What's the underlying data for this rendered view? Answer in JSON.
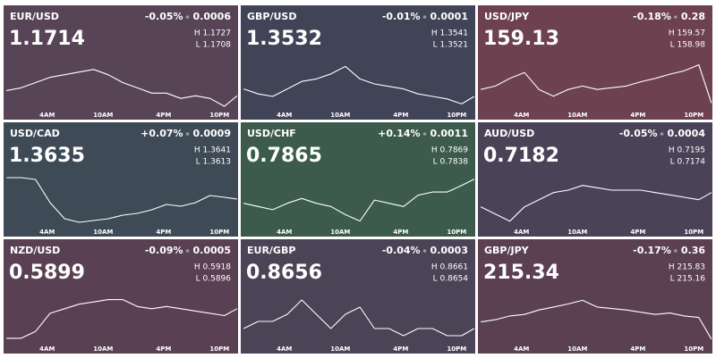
{
  "chart_data": [
    {
      "type": "line",
      "title": "EUR/USD",
      "price": "1.1714",
      "change": "-0.05%",
      "change_abs": "0.0006",
      "high": "H 1.1727",
      "low": "L 1.1708",
      "background": "#584457",
      "color": "#ffffff",
      "x": [
        -1,
        0.5,
        2,
        3.5,
        5,
        6.5,
        8,
        9.5,
        11,
        12.5,
        14,
        15.5,
        17,
        18.5,
        20,
        21.5,
        22.8
      ],
      "values": [
        1.1715,
        1.1716,
        1.1718,
        1.172,
        1.1721,
        1.1722,
        1.1723,
        1.1721,
        1.1718,
        1.1716,
        1.1714,
        1.1714,
        1.1712,
        1.1713,
        1.1712,
        1.1709,
        1.1713
      ],
      "xlim": [
        -1.3,
        22.9
      ],
      "ylim": [
        1.1708,
        1.1727
      ],
      "xticks": [
        {
          "value": 4,
          "label": "4AM"
        },
        {
          "value": 10,
          "label": "10AM"
        },
        {
          "value": 16,
          "label": "4PM"
        },
        {
          "value": 22,
          "label": "10PM"
        }
      ]
    },
    {
      "type": "line",
      "title": "GBP/USD",
      "price": "1.3532",
      "change": "-0.01%",
      "change_abs": "0.0001",
      "high": "H 1.3541",
      "low": "L 1.3521",
      "background": "#414357",
      "color": "#ffffff",
      "x": [
        -1,
        0.5,
        2,
        3.5,
        5,
        6.5,
        8,
        9.5,
        11,
        12.5,
        14,
        15.5,
        17,
        18.5,
        20,
        21.5,
        22.8
      ],
      "values": [
        1.3529,
        1.3527,
        1.3526,
        1.3529,
        1.3532,
        1.3533,
        1.3535,
        1.3538,
        1.3533,
        1.3531,
        1.353,
        1.3529,
        1.3527,
        1.3526,
        1.3525,
        1.3523,
        1.3526
      ],
      "xlim": [
        -1.3,
        22.9
      ],
      "ylim": [
        1.3521,
        1.3541
      ],
      "xticks": [
        {
          "value": 4,
          "label": "4AM"
        },
        {
          "value": 10,
          "label": "10AM"
        },
        {
          "value": 16,
          "label": "4PM"
        },
        {
          "value": 22,
          "label": "10PM"
        }
      ]
    },
    {
      "type": "line",
      "title": "USD/JPY",
      "price": "159.13",
      "change": "-0.18%",
      "change_abs": "0.28",
      "high": "H 159.57",
      "low": "L 158.98",
      "background": "#6d4150",
      "color": "#ffffff",
      "x": [
        -1,
        0.5,
        2,
        3.5,
        5,
        6.5,
        8,
        9.5,
        11,
        12.5,
        14,
        15.5,
        17,
        18.5,
        20,
        21.5,
        22.8
      ],
      "values": [
        159.21,
        159.25,
        159.34,
        159.41,
        159.21,
        159.13,
        159.21,
        159.25,
        159.21,
        159.23,
        159.25,
        159.3,
        159.34,
        159.39,
        159.43,
        159.5,
        159.05
      ],
      "xlim": [
        -1.3,
        22.9
      ],
      "ylim": [
        158.98,
        159.57
      ],
      "xticks": [
        {
          "value": 4,
          "label": "4AM"
        },
        {
          "value": 10,
          "label": "10AM"
        },
        {
          "value": 16,
          "label": "4PM"
        },
        {
          "value": 22,
          "label": "10PM"
        }
      ]
    },
    {
      "type": "line",
      "title": "USD/CAD",
      "price": "1.3635",
      "change": "+0.07%",
      "change_abs": "0.0009",
      "high": "H 1.3641",
      "low": "L 1.3613",
      "background": "#3e4a55",
      "color": "#ffffff",
      "x": [
        -1,
        0.5,
        2,
        3.5,
        5,
        6.5,
        8,
        9.5,
        11,
        12.5,
        14,
        15.5,
        17,
        18.5,
        20,
        21.5,
        22.8
      ],
      "values": [
        1.364,
        1.364,
        1.3639,
        1.3626,
        1.3617,
        1.3615,
        1.3616,
        1.3617,
        1.3619,
        1.362,
        1.3622,
        1.3625,
        1.3624,
        1.3626,
        1.363,
        1.3629,
        1.3628
      ],
      "xlim": [
        -1.3,
        22.9
      ],
      "ylim": [
        1.3613,
        1.3641
      ],
      "xticks": [
        {
          "value": 4,
          "label": "4AM"
        },
        {
          "value": 10,
          "label": "10AM"
        },
        {
          "value": 16,
          "label": "4PM"
        },
        {
          "value": 22,
          "label": "10PM"
        }
      ]
    },
    {
      "type": "line",
      "title": "USD/CHF",
      "price": "0.7865",
      "change": "+0.14%",
      "change_abs": "0.0011",
      "high": "H 0.7869",
      "low": "L 0.7838",
      "background": "#3c5b4d",
      "color": "#ffffff",
      "x": [
        -1,
        0.5,
        2,
        3.5,
        5,
        6.5,
        8,
        9.5,
        11,
        12.5,
        14,
        15.5,
        17,
        18.5,
        20,
        21.5,
        22.8
      ],
      "values": [
        0.7852,
        0.785,
        0.7848,
        0.7852,
        0.7855,
        0.7852,
        0.785,
        0.7845,
        0.7841,
        0.7854,
        0.7852,
        0.785,
        0.7857,
        0.7859,
        0.7859,
        0.7863,
        0.7867
      ],
      "xlim": [
        -1.3,
        22.9
      ],
      "ylim": [
        0.7838,
        0.7869
      ],
      "xticks": [
        {
          "value": 4,
          "label": "4AM"
        },
        {
          "value": 10,
          "label": "10AM"
        },
        {
          "value": 16,
          "label": "4PM"
        },
        {
          "value": 22,
          "label": "10PM"
        }
      ]
    },
    {
      "type": "line",
      "title": "AUD/USD",
      "price": "0.7182",
      "change": "-0.05%",
      "change_abs": "0.0004",
      "high": "H 0.7195",
      "low": "L 0.7174",
      "background": "#4a4358",
      "color": "#ffffff",
      "x": [
        -1,
        0.5,
        2,
        3.5,
        5,
        6.5,
        8,
        9.5,
        11,
        12.5,
        14,
        15.5,
        17,
        18.5,
        20,
        21.5,
        22.8
      ],
      "values": [
        0.7182,
        0.7179,
        0.7176,
        0.7182,
        0.7185,
        0.7188,
        0.7189,
        0.7191,
        0.719,
        0.7189,
        0.7189,
        0.7189,
        0.7188,
        0.7187,
        0.7186,
        0.7185,
        0.7188
      ],
      "xlim": [
        -1.3,
        22.9
      ],
      "ylim": [
        0.7174,
        0.7195
      ],
      "xticks": [
        {
          "value": 4,
          "label": "4AM"
        },
        {
          "value": 10,
          "label": "10AM"
        },
        {
          "value": 16,
          "label": "4PM"
        },
        {
          "value": 22,
          "label": "10PM"
        }
      ]
    },
    {
      "type": "line",
      "title": "NZD/USD",
      "price": "0.5899",
      "change": "-0.09%",
      "change_abs": "0.0005",
      "high": "H 0.5918",
      "low": "L 0.5896",
      "background": "#5a4053",
      "color": "#ffffff",
      "x": [
        -1,
        0.5,
        2,
        3.5,
        5,
        6.5,
        8,
        9.5,
        11,
        12.5,
        14,
        15.5,
        17,
        18.5,
        20,
        21.5,
        22.8
      ],
      "values": [
        0.5898,
        0.5898,
        0.5901,
        0.5909,
        0.5911,
        0.5913,
        0.5914,
        0.5915,
        0.5915,
        0.5912,
        0.5911,
        0.5912,
        0.5911,
        0.591,
        0.5909,
        0.5908,
        0.5911
      ],
      "xlim": [
        -1.3,
        22.9
      ],
      "ylim": [
        0.5896,
        0.5918
      ],
      "xticks": [
        {
          "value": 4,
          "label": "4AM"
        },
        {
          "value": 10,
          "label": "10AM"
        },
        {
          "value": 16,
          "label": "4PM"
        },
        {
          "value": 22,
          "label": "10PM"
        }
      ]
    },
    {
      "type": "line",
      "title": "EUR/GBP",
      "price": "0.8656",
      "change": "-0.04%",
      "change_abs": "0.0003",
      "high": "H 0.8661",
      "low": "L 0.8654",
      "background": "#4b4356",
      "color": "#ffffff",
      "x": [
        -1,
        0.5,
        2,
        3.5,
        5,
        6.5,
        8,
        9.5,
        11,
        12.5,
        14,
        15.5,
        17,
        18.5,
        20,
        21.5,
        22.8
      ],
      "values": [
        0.8656,
        0.8657,
        0.8657,
        0.8658,
        0.866,
        0.8658,
        0.8656,
        0.8658,
        0.8659,
        0.8656,
        0.8656,
        0.8655,
        0.8656,
        0.8656,
        0.8655,
        0.8655,
        0.8656
      ],
      "xlim": [
        -1.3,
        22.9
      ],
      "ylim": [
        0.8654,
        0.8661
      ],
      "xticks": [
        {
          "value": 4,
          "label": "4AM"
        },
        {
          "value": 10,
          "label": "10AM"
        },
        {
          "value": 16,
          "label": "4PM"
        },
        {
          "value": 22,
          "label": "10PM"
        }
      ]
    },
    {
      "type": "line",
      "title": "GBP/JPY",
      "price": "215.34",
      "change": "-0.17%",
      "change_abs": "0.36",
      "high": "H 215.83",
      "low": "L 215.16",
      "background": "#5b4051",
      "color": "#ffffff",
      "x": [
        -1,
        0.5,
        2,
        3.5,
        5,
        6.5,
        8,
        9.5,
        11,
        12.5,
        14,
        15.5,
        17,
        18.5,
        20,
        21.5,
        22.8
      ],
      "values": [
        215.44,
        215.47,
        215.52,
        215.54,
        215.6,
        215.64,
        215.68,
        215.73,
        215.64,
        215.62,
        215.6,
        215.57,
        215.54,
        215.56,
        215.52,
        215.5,
        215.21
      ],
      "xlim": [
        -1.3,
        22.9
      ],
      "ylim": [
        215.16,
        215.83
      ],
      "xticks": [
        {
          "value": 4,
          "label": "4AM"
        },
        {
          "value": 10,
          "label": "10AM"
        },
        {
          "value": 16,
          "label": "4PM"
        },
        {
          "value": 22,
          "label": "10PM"
        }
      ]
    }
  ]
}
